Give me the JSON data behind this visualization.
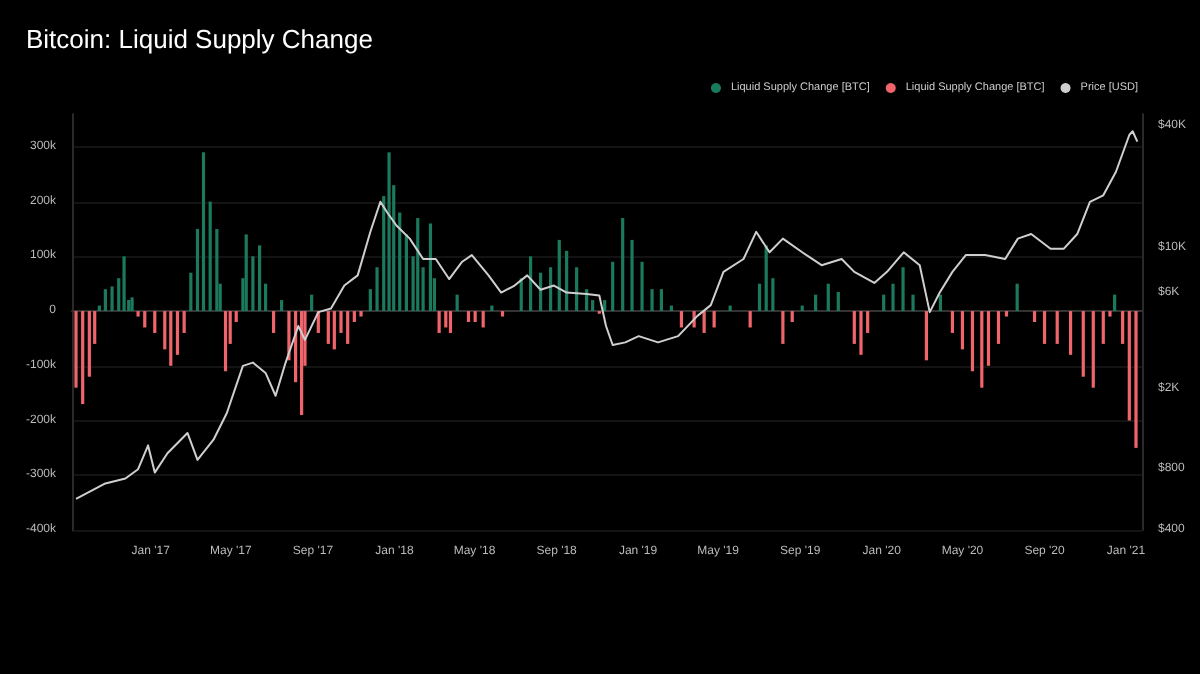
{
  "chart_data": {
    "type": "bar",
    "title": "Bitcoin: Liquid Supply Change",
    "xlim": [
      "2016-09-05",
      "2021-01-25"
    ],
    "xticks": [
      {
        "value": "2017-01-01",
        "label": "Jan '17"
      },
      {
        "value": "2017-05-01",
        "label": "May '17"
      },
      {
        "value": "2017-09-01",
        "label": "Sep '17"
      },
      {
        "value": "2018-01-01",
        "label": "Jan '18"
      },
      {
        "value": "2018-05-01",
        "label": "May '18"
      },
      {
        "value": "2018-09-01",
        "label": "Sep '18"
      },
      {
        "value": "2019-01-01",
        "label": "Jan '19"
      },
      {
        "value": "2019-05-01",
        "label": "May '19"
      },
      {
        "value": "2019-09-01",
        "label": "Sep '19"
      },
      {
        "value": "2020-01-01",
        "label": "Jan '20"
      },
      {
        "value": "2020-05-01",
        "label": "May '20"
      },
      {
        "value": "2020-09-01",
        "label": "Sep '20"
      },
      {
        "value": "2021-01-01",
        "label": "Jan '21"
      }
    ],
    "ylim": [
      -400000,
      360000
    ],
    "yticks": [
      {
        "value": -400000,
        "label": "-400k"
      },
      {
        "value": -300000,
        "label": "-300k"
      },
      {
        "value": -200000,
        "label": "-200k"
      },
      {
        "value": -100000,
        "label": "-100k"
      },
      0,
      {
        "value": 100000,
        "label": "100k"
      },
      {
        "value": 200000,
        "label": "200k"
      },
      {
        "value": 300000,
        "label": "300k"
      }
    ],
    "y2lim": [
      400,
      46000
    ],
    "y2ticks": [
      {
        "value": 400,
        "label": "$400"
      },
      {
        "value": 800,
        "label": "$800"
      },
      {
        "value": 2000,
        "label": "$2K"
      },
      {
        "value": 6000,
        "label": "$6K"
      },
      {
        "value": 10000,
        "label": "$10K"
      },
      {
        "value": 40000,
        "label": "$40K"
      }
    ],
    "log": "y2",
    "grid": "y",
    "legend": "top right",
    "series": [
      {
        "name": "Liquid Supply Change [BTC]",
        "color": "#1b7a5e",
        "x": [
          "2016-10-16",
          "2016-10-25",
          "2016-11-04",
          "2016-11-14",
          "2016-11-22",
          "2016-11-29",
          "2016-12-04",
          "2017-03-02",
          "2017-03-12",
          "2017-03-21",
          "2017-03-31",
          "2017-04-10",
          "2017-04-15",
          "2017-05-19",
          "2017-05-24",
          "2017-06-03",
          "2017-06-13",
          "2017-06-22",
          "2017-07-16",
          "2017-08-30",
          "2017-11-26",
          "2017-12-06",
          "2017-12-16",
          "2017-12-24",
          "2017-12-31",
          "2018-01-09",
          "2018-01-19",
          "2018-01-29",
          "2018-02-05",
          "2018-02-13",
          "2018-02-24",
          "2018-03-02",
          "2018-04-05",
          "2018-05-27",
          "2018-07-10",
          "2018-07-24",
          "2018-08-08",
          "2018-08-23",
          "2018-09-05",
          "2018-09-16",
          "2018-10-01",
          "2018-10-16",
          "2018-10-25",
          "2018-11-12",
          "2018-11-24",
          "2018-12-09",
          "2018-12-23",
          "2019-01-07",
          "2019-01-22",
          "2019-02-05",
          "2019-02-20",
          "2019-05-19",
          "2019-07-02",
          "2019-07-12",
          "2019-07-22",
          "2019-09-04",
          "2019-09-24",
          "2019-10-13",
          "2019-10-28",
          "2020-01-04",
          "2020-01-18",
          "2020-02-02",
          "2020-02-17",
          "2020-03-29",
          "2020-07-22",
          "2020-12-15"
        ],
        "values": [
          10000,
          40000,
          45000,
          60000,
          100000,
          20000,
          25000,
          70000,
          150000,
          290000,
          200000,
          150000,
          50000,
          60000,
          140000,
          100000,
          120000,
          50000,
          20000,
          30000,
          40000,
          80000,
          210000,
          290000,
          230000,
          180000,
          140000,
          100000,
          170000,
          80000,
          160000,
          60000,
          30000,
          10000,
          60000,
          100000,
          70000,
          80000,
          130000,
          110000,
          80000,
          40000,
          20000,
          20000,
          90000,
          170000,
          130000,
          90000,
          40000,
          40000,
          10000,
          10000,
          50000,
          120000,
          60000,
          10000,
          30000,
          50000,
          35000,
          30000,
          50000,
          80000,
          30000,
          30000,
          50000,
          30000
        ]
      },
      {
        "name": "Liquid Supply Change [BTC]",
        "color": "#f0646c",
        "x": [
          "2016-09-11",
          "2016-09-21",
          "2016-10-01",
          "2016-10-09",
          "2016-12-13",
          "2016-12-23",
          "2017-01-07",
          "2017-01-22",
          "2017-01-31",
          "2017-02-10",
          "2017-02-20",
          "2017-04-23",
          "2017-04-30",
          "2017-05-09",
          "2017-07-04",
          "2017-07-27",
          "2017-08-06",
          "2017-08-15",
          "2017-08-20",
          "2017-09-09",
          "2017-09-24",
          "2017-10-03",
          "2017-10-13",
          "2017-10-23",
          "2017-11-02",
          "2017-11-12",
          "2018-03-09",
          "2018-03-19",
          "2018-03-26",
          "2018-04-22",
          "2018-05-02",
          "2018-05-14",
          "2018-06-12",
          "2018-11-04",
          "2019-03-07",
          "2019-03-26",
          "2019-04-10",
          "2019-04-25",
          "2019-06-18",
          "2019-08-06",
          "2019-08-20",
          "2019-11-21",
          "2019-12-01",
          "2019-12-11",
          "2020-03-08",
          "2020-04-16",
          "2020-05-01",
          "2020-05-16",
          "2020-05-30",
          "2020-06-09",
          "2020-06-24",
          "2020-07-06",
          "2020-08-17",
          "2020-09-01",
          "2020-09-20",
          "2020-10-10",
          "2020-10-29",
          "2020-11-13",
          "2020-11-28",
          "2020-12-08",
          "2020-12-27",
          "2021-01-06",
          "2021-01-16"
        ],
        "values": [
          -140000,
          -170000,
          -120000,
          -60000,
          -10000,
          -30000,
          -40000,
          -70000,
          -100000,
          -80000,
          -40000,
          -110000,
          -60000,
          -20000,
          -40000,
          -90000,
          -130000,
          -190000,
          -100000,
          -40000,
          -60000,
          -70000,
          -40000,
          -60000,
          -20000,
          -10000,
          -40000,
          -30000,
          -40000,
          -20000,
          -20000,
          -30000,
          -10000,
          -5000,
          -30000,
          -30000,
          -40000,
          -30000,
          -30000,
          -60000,
          -20000,
          -60000,
          -80000,
          -40000,
          -90000,
          -40000,
          -70000,
          -110000,
          -140000,
          -100000,
          -60000,
          -10000,
          -20000,
          -60000,
          -60000,
          -80000,
          -120000,
          -140000,
          -60000,
          -10000,
          -60000,
          -200000,
          -250000
        ]
      },
      {
        "name": "Price [USD]",
        "type": "line",
        "axis": "y2",
        "color": "#cfcfcf",
        "marker": "none",
        "x": [
          "2016-09-11",
          "2016-10-25",
          "2016-11-24",
          "2016-12-13",
          "2016-12-28",
          "2017-01-07",
          "2017-01-26",
          "2017-02-25",
          "2017-03-12",
          "2017-04-05",
          "2017-04-25",
          "2017-05-19",
          "2017-06-03",
          "2017-06-22",
          "2017-07-07",
          "2017-07-22",
          "2017-08-10",
          "2017-08-20",
          "2017-09-09",
          "2017-09-28",
          "2017-10-18",
          "2017-11-07",
          "2017-11-26",
          "2017-12-11",
          "2017-12-21",
          "2018-01-04",
          "2018-01-24",
          "2018-02-13",
          "2018-03-04",
          "2018-03-24",
          "2018-04-12",
          "2018-04-27",
          "2018-05-22",
          "2018-06-10",
          "2018-06-30",
          "2018-07-19",
          "2018-08-08",
          "2018-08-28",
          "2018-09-16",
          "2018-10-16",
          "2018-11-04",
          "2018-11-14",
          "2018-11-24",
          "2018-12-13",
          "2019-01-02",
          "2019-01-31",
          "2019-03-02",
          "2019-03-31",
          "2019-04-20",
          "2019-05-09",
          "2019-06-08",
          "2019-06-27",
          "2019-07-17",
          "2019-08-06",
          "2019-09-04",
          "2019-10-03",
          "2019-11-02",
          "2019-11-21",
          "2019-12-21",
          "2020-01-09",
          "2020-02-03",
          "2020-02-27",
          "2020-03-13",
          "2020-03-28",
          "2020-04-16",
          "2020-05-06",
          "2020-06-04",
          "2020-07-04",
          "2020-07-23",
          "2020-08-12",
          "2020-09-10",
          "2020-09-30",
          "2020-10-20",
          "2020-11-08",
          "2020-11-28",
          "2020-12-17",
          "2021-01-06",
          "2021-01-11",
          "2021-01-18"
        ],
        "values": [
          570,
          680,
          720,
          800,
          1050,
          770,
          960,
          1210,
          890,
          1120,
          1520,
          2600,
          2700,
          2400,
          1850,
          2700,
          4100,
          3500,
          4800,
          5000,
          6500,
          7300,
          12000,
          16900,
          15000,
          12900,
          11100,
          8800,
          8800,
          7000,
          8500,
          9200,
          7300,
          6000,
          6500,
          7300,
          6200,
          6500,
          6000,
          5900,
          5800,
          4100,
          3300,
          3400,
          3650,
          3400,
          3650,
          4600,
          5200,
          7600,
          8800,
          12000,
          9500,
          11100,
          9500,
          8200,
          8800,
          7600,
          6700,
          7600,
          9500,
          8200,
          4800,
          6000,
          7600,
          9200,
          9200,
          8800,
          11100,
          11700,
          9900,
          9900,
          11700,
          16900,
          18200,
          23800,
          36200,
          37800,
          33600
        ]
      }
    ]
  }
}
